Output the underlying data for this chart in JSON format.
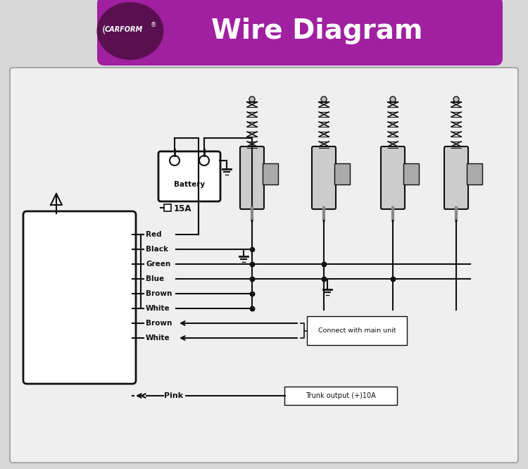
{
  "bg_color": "#d8d8d8",
  "diagram_bg": "#efefef",
  "title_text": "Wire Diagram",
  "brand_text": "CARFORM",
  "wire_labels": [
    "Red",
    "Black",
    "Green",
    "Blue",
    "Brown",
    "White",
    "Brown",
    "White"
  ],
  "pink_label": "Pink",
  "connect_label": "Connect with main unit",
  "trunk_label": "Trunk output (+)10A",
  "battery_label": "Battery",
  "fuse_label": "15A",
  "header_purple": "#a020a0",
  "header_dark": "#5a1050",
  "line_color": "#111111"
}
